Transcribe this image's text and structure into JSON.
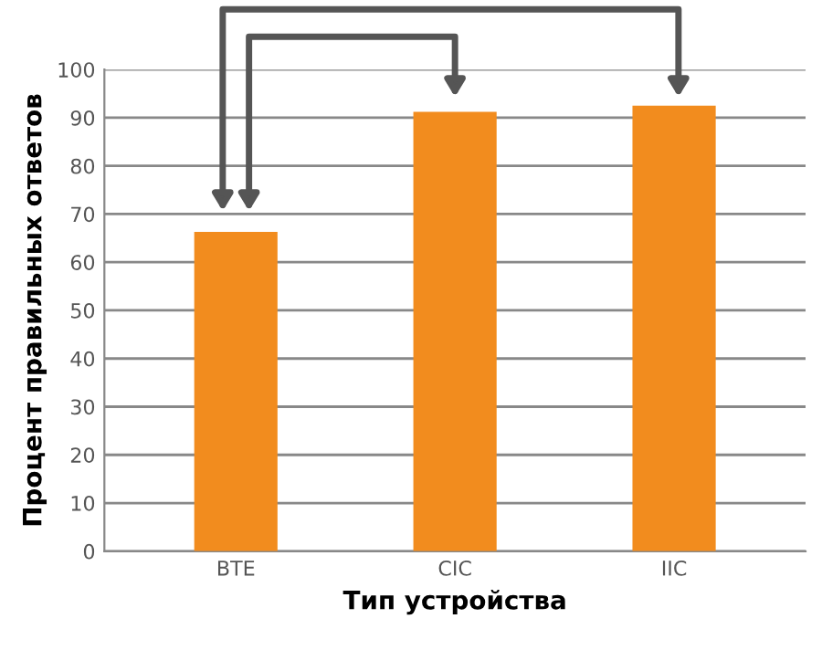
{
  "chart_data": {
    "type": "bar",
    "xlabel": "Тип устройства",
    "ylabel": "Процент правильных ответов",
    "categories": [
      "BTE",
      "CIC",
      "IIC"
    ],
    "values": [
      66.3,
      91.2,
      92.5
    ],
    "color": "#f28c1e",
    "ylim": [
      0,
      100
    ],
    "yticks": [
      0,
      10,
      20,
      30,
      40,
      50,
      60,
      70,
      80,
      90,
      100
    ],
    "grid": "y"
  }
}
